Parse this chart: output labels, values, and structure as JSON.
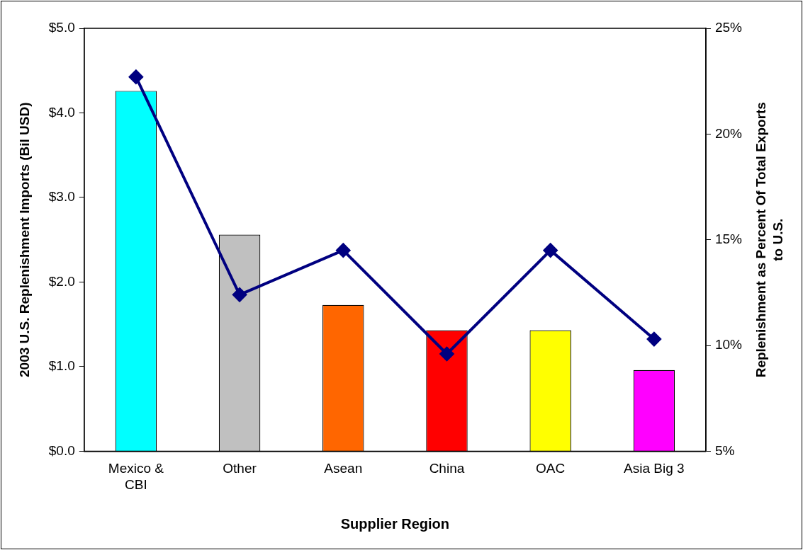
{
  "chart_data": {
    "type": "bar",
    "xlabel": "Supplier Region",
    "ylabel": "2003 U.S. Replenishment Imports (Bil USD)",
    "y2label": "Replenishment as Percent Of Total Exports to U.S.",
    "categories": [
      "Mexico & CBI",
      "Other",
      "Asean",
      "China",
      "OAC",
      "Asia Big 3"
    ],
    "series": [
      {
        "colors": [
          "#00ffff",
          "#c0c0c0",
          "#ff6600",
          "#ff0000",
          "#ffff00",
          "#ff00ff"
        ],
        "values": [
          4.26,
          2.56,
          1.73,
          1.43,
          1.43,
          0.96
        ]
      },
      {
        "type": "line",
        "axis": "y2",
        "color": "#000080",
        "marker": "diamond",
        "line_style": "solid",
        "values": [
          22.7,
          12.4,
          14.5,
          9.6,
          14.5,
          10.3
        ]
      }
    ],
    "ylim": [
      0,
      5
    ],
    "yticks": [
      {
        "value": 0,
        "label": "$0.0"
      },
      {
        "value": 1,
        "label": "$1.0"
      },
      {
        "value": 2,
        "label": "$2.0"
      },
      {
        "value": 3,
        "label": "$3.0"
      },
      {
        "value": 4,
        "label": "$4.0"
      },
      {
        "value": 5,
        "label": "$5.0"
      }
    ],
    "y2lim": [
      5,
      25
    ],
    "y2ticks": [
      {
        "value": 5,
        "label": "5%"
      },
      {
        "value": 10,
        "label": "10%"
      },
      {
        "value": 15,
        "label": "15%"
      },
      {
        "value": 20,
        "label": "20%"
      },
      {
        "value": 25,
        "label": "25%"
      }
    ],
    "grid": false,
    "legend": false
  }
}
